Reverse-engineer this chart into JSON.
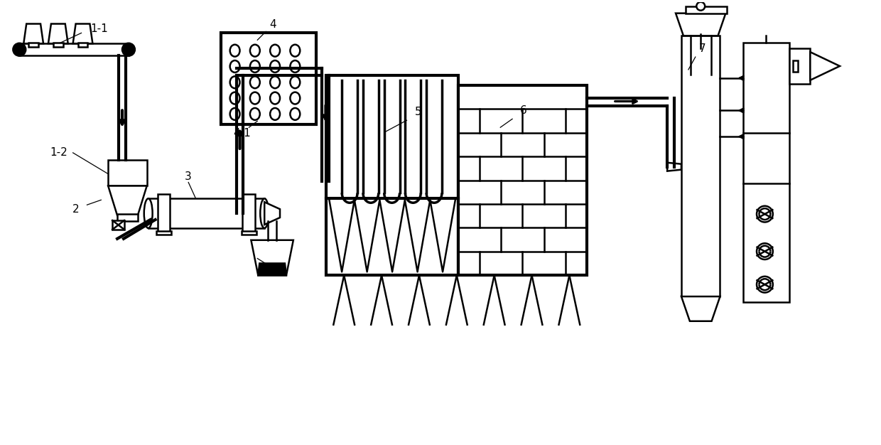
{
  "bg": "#ffffff",
  "lc": "#000000",
  "lw": 1.8,
  "lw_thick": 3.0,
  "fw": 12.4,
  "fh": 6.26,
  "dpi": 100
}
